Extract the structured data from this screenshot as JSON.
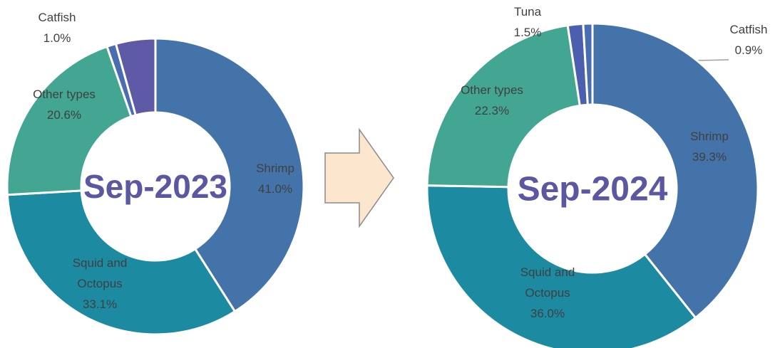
{
  "chart_data": [
    {
      "type": "pie",
      "donut": true,
      "title": "Sep-2023",
      "categories": [
        "Shrimp",
        "Squid and Octopus",
        "Other types",
        "Catfish",
        null
      ],
      "values": [
        41.0,
        33.1,
        20.6,
        1.0,
        4.3
      ],
      "value_labels": [
        "41.0%",
        "33.1%",
        "20.6%",
        "1.0%",
        null
      ],
      "colors": [
        "#4373a8",
        "#1c8aa1",
        "#43a692",
        "#4a6cb0",
        "#5e5aa6"
      ]
    },
    {
      "type": "pie",
      "donut": true,
      "title": "Sep-2024",
      "categories": [
        "Shrimp",
        "Squid and Octopus",
        "Other types",
        "Tuna",
        "Catfish"
      ],
      "values": [
        39.3,
        36.0,
        22.3,
        1.5,
        0.9
      ],
      "value_labels": [
        "39.3%",
        "36.0%",
        "22.3%",
        "1.5%",
        "0.9%"
      ],
      "colors": [
        "#4373a8",
        "#1c8aa1",
        "#43a692",
        "#4c5fae",
        "#4a6cb0"
      ]
    }
  ]
}
